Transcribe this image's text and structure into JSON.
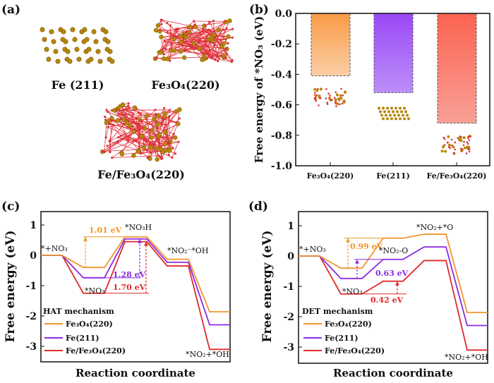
{
  "panel_a": {
    "tag": "(a)",
    "structures": [
      "Fe (211)",
      "Fe₃O₄(220)",
      "Fe/Fe₃O₄(220)"
    ]
  },
  "colors": {
    "fe3o4": "#F0962C",
    "fe": "#8A2BE2",
    "fefe3o4": "#E02A2A",
    "fe_atom": "#B8860B",
    "o_atom": "#E0303A"
  },
  "chart_data": [
    {
      "type": "bar",
      "tag": "(b)",
      "categories": [
        "Fe₃O₄(220)",
        "Fe(211)",
        "Fe/Fe₃O₄(220)"
      ],
      "values": [
        -0.41,
        -0.52,
        -0.72
      ],
      "xlabel": "",
      "ylabel": "Free energy of *NO₃ (eV)",
      "ylim": [
        -1.0,
        0.0
      ],
      "yticks": [
        "0.0",
        "-0.2",
        "-0.4",
        "-0.6",
        "-0.8",
        "-1.0"
      ]
    },
    {
      "type": "line",
      "tag": "(c)",
      "title": "HAT mechanism",
      "xlabel": "Reaction coordinate",
      "ylabel": "Free energy (eV)",
      "ylim": [
        -3.5,
        1.45
      ],
      "yticks": [
        "1",
        "0",
        "-1",
        "-2",
        "-3"
      ],
      "states": [
        "*+NO₃",
        "*NO₃",
        "*NO₃H",
        "*NO₂⁻*OH",
        "*NO₂+*OH"
      ],
      "series": [
        {
          "name": "Fe₃O₄(220)",
          "values": [
            0,
            -0.4,
            0.61,
            -0.13,
            -1.86
          ]
        },
        {
          "name": "Fe(211)",
          "values": [
            0,
            -0.74,
            0.54,
            -0.23,
            -2.29
          ]
        },
        {
          "name": "Fe/Fe₃O₄(220)",
          "values": [
            0,
            -1.25,
            0.45,
            -0.35,
            -3.1
          ]
        }
      ],
      "annotations": [
        "1.01 eV",
        "1.28 eV",
        "1.70 eV"
      ]
    },
    {
      "type": "line",
      "tag": "(d)",
      "title": "DET mechanism",
      "xlabel": "Reaction coordinate",
      "ylabel": "Free energy (eV)",
      "ylim": [
        -3.5,
        1.45
      ],
      "yticks": [
        "1",
        "0",
        "-1",
        "-2",
        "-3"
      ],
      "states": [
        "*+NO₃",
        "*NO₃",
        "*NO₂-O",
        "*NO₂+*O",
        "*NO₂+*OH"
      ],
      "series": [
        {
          "name": "Fe₃O₄(220)",
          "values": [
            0,
            -0.4,
            0.59,
            0.72,
            -1.86
          ]
        },
        {
          "name": "Fe(211)",
          "values": [
            0,
            -0.74,
            -0.11,
            0.3,
            -2.29
          ]
        },
        {
          "name": "Fe/Fe₃O₄(220)",
          "values": [
            0,
            -1.25,
            -0.83,
            -0.15,
            -3.1
          ]
        }
      ],
      "annotations": [
        "0.99 eV",
        "0.63 eV",
        "0.42 eV"
      ]
    }
  ]
}
